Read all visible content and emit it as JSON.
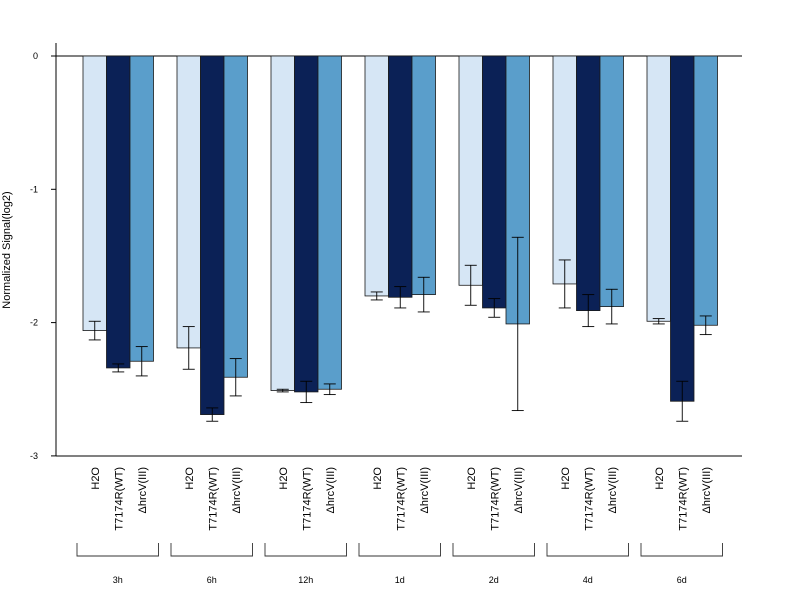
{
  "chart_data": {
    "type": "bar",
    "ylabel": "Normalized Signal(log2)",
    "ylim": [
      -3,
      0.1
    ],
    "yticks": [
      0,
      -1,
      -2,
      -3
    ],
    "series_labels": [
      "H2O",
      "T7174R(WT)",
      "ΔhrcV(III)"
    ],
    "colors": [
      "#d6e6f5",
      "#0b2156",
      "#5a9ecb"
    ],
    "groups": [
      {
        "name": "3h",
        "values": [
          -2.06,
          -2.34,
          -2.29
        ],
        "errors": [
          0.07,
          0.03,
          0.11
        ]
      },
      {
        "name": "6h",
        "values": [
          -2.19,
          -2.69,
          -2.41
        ],
        "errors": [
          0.16,
          0.05,
          0.14
        ]
      },
      {
        "name": "12h",
        "values": [
          -2.51,
          -2.52,
          -2.5
        ],
        "errors": [
          0.01,
          0.08,
          0.04
        ]
      },
      {
        "name": "1d",
        "values": [
          -1.8,
          -1.81,
          -1.79
        ],
        "errors": [
          0.03,
          0.08,
          0.13
        ]
      },
      {
        "name": "2d",
        "values": [
          -1.72,
          -1.89,
          -2.01
        ],
        "errors": [
          0.15,
          0.07,
          0.65
        ]
      },
      {
        "name": "4d",
        "values": [
          -1.71,
          -1.91,
          -1.88
        ],
        "errors": [
          0.18,
          0.12,
          0.13
        ]
      },
      {
        "name": "6d",
        "values": [
          -1.99,
          -2.59,
          -2.02
        ],
        "errors": [
          0.02,
          0.15,
          0.07
        ]
      }
    ],
    "grid": false,
    "legend": "none"
  }
}
